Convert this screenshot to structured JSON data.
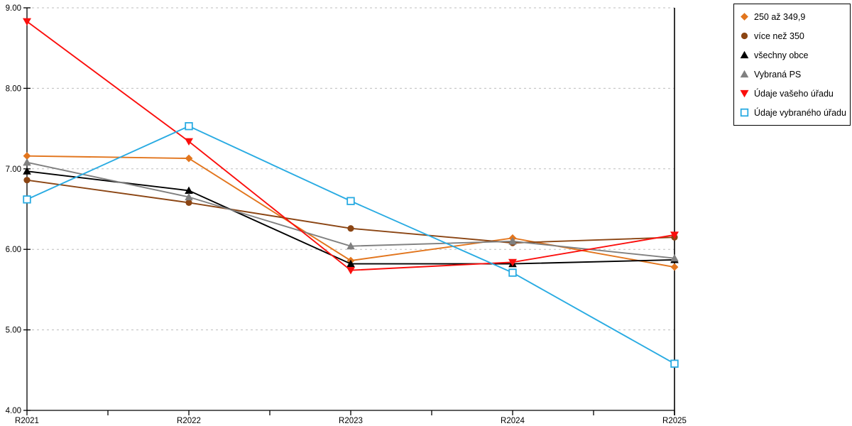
{
  "chart_data": {
    "type": "line",
    "title": "",
    "xlabel": "",
    "ylabel": "",
    "categories": [
      "R2021",
      "R2022",
      "R2023",
      "R2024",
      "R2025"
    ],
    "series": [
      {
        "name": "250 až 349,9",
        "color": "#E2751D",
        "marker": "diamond",
        "values": [
          7.16,
          7.13,
          5.86,
          6.14,
          5.78
        ]
      },
      {
        "name": "více než 350",
        "color": "#8B4513",
        "marker": "circle",
        "values": [
          6.86,
          6.58,
          6.26,
          6.08,
          6.15
        ]
      },
      {
        "name": "všechny obce",
        "color": "#000000",
        "marker": "triangle-up",
        "values": [
          6.97,
          6.73,
          5.82,
          5.82,
          5.87
        ]
      },
      {
        "name": "Vybraná PS",
        "color": "#808080",
        "marker": "triangle-up",
        "values": [
          7.08,
          6.65,
          6.04,
          6.1,
          5.89
        ]
      },
      {
        "name": "Údaje vašeho úřadu",
        "color": "#FB0E0C",
        "marker": "triangle-down",
        "values": [
          8.83,
          7.34,
          5.74,
          5.84,
          6.18
        ]
      },
      {
        "name": "Údaje vybraného úřadu",
        "color": "#29ABE2",
        "marker": "square-open",
        "values": [
          6.62,
          7.53,
          6.6,
          5.71,
          4.58
        ]
      }
    ],
    "ylim": [
      4,
      9
    ],
    "ytick_labels": [
      "4.00",
      "5.00",
      "6.00",
      "7.00",
      "8.00",
      "9.00"
    ],
    "grid": "horizontal-dashed",
    "grid_color": "#BDBDBD",
    "axis_color": "#000000",
    "background_color": "#FFFFFF",
    "legend_position": "outside-top-right"
  }
}
